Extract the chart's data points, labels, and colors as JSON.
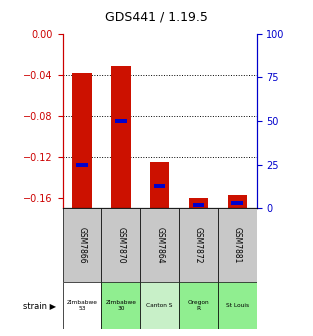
{
  "title": "GDS441 / 1.19.5",
  "samples": [
    "GSM7866",
    "GSM7870",
    "GSM7864",
    "GSM7872",
    "GSM7881"
  ],
  "strains": [
    "Zimbabwe\n53",
    "Zimbabwe\n30",
    "Canton S",
    "Oregon\nR",
    "St Louis"
  ],
  "strain_colors": [
    "#ffffff",
    "#90ee90",
    "#c8f0c8",
    "#90ee90",
    "#90ee90"
  ],
  "bar_tops": [
    -0.038,
    -0.032,
    -0.125,
    -0.16,
    -0.157
  ],
  "percentile_ranks": [
    25,
    50,
    13,
    2,
    3
  ],
  "ylim_left": [
    -0.17,
    0.0
  ],
  "ylim_right": [
    0,
    100
  ],
  "yticks_left": [
    0,
    -0.04,
    -0.08,
    -0.12,
    -0.16
  ],
  "yticks_right": [
    0,
    25,
    50,
    75,
    100
  ],
  "bar_color": "#cc1100",
  "percentile_color": "#0000cc",
  "grid_color": "#000000",
  "background_color": "#ffffff",
  "cell_bg_color": "#c8c8c8",
  "label_color_red": "#cc0000",
  "label_color_blue": "#0000cc"
}
